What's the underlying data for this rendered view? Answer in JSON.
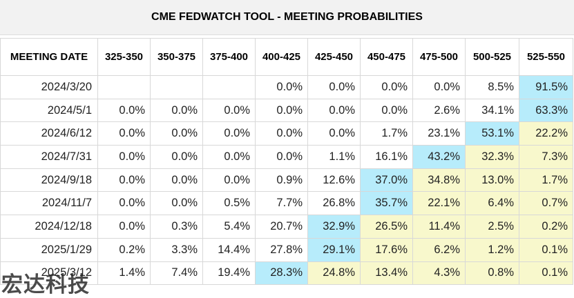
{
  "title": "CME FEDWATCH TOOL - MEETING PROBABILITIES",
  "columns": [
    "MEETING DATE",
    "325-350",
    "350-375",
    "375-400",
    "400-425",
    "425-450",
    "450-475",
    "475-500",
    "500-525",
    "525-550"
  ],
  "rows": [
    {
      "date": "2024/3/20",
      "values": [
        "",
        "",
        "",
        "0.0%",
        "0.0%",
        "0.0%",
        "0.0%",
        "8.5%",
        "91.5%"
      ],
      "highlight": [
        0,
        0,
        0,
        0,
        0,
        0,
        0,
        0,
        2
      ]
    },
    {
      "date": "2024/5/1",
      "values": [
        "0.0%",
        "0.0%",
        "0.0%",
        "0.0%",
        "0.0%",
        "0.0%",
        "2.6%",
        "34.1%",
        "63.3%"
      ],
      "highlight": [
        0,
        0,
        0,
        0,
        0,
        0,
        0,
        0,
        2
      ]
    },
    {
      "date": "2024/6/12",
      "values": [
        "0.0%",
        "0.0%",
        "0.0%",
        "0.0%",
        "0.0%",
        "1.7%",
        "23.1%",
        "53.1%",
        "22.2%"
      ],
      "highlight": [
        0,
        0,
        0,
        0,
        0,
        0,
        0,
        2,
        1
      ]
    },
    {
      "date": "2024/7/31",
      "values": [
        "0.0%",
        "0.0%",
        "0.0%",
        "0.0%",
        "1.1%",
        "16.1%",
        "43.2%",
        "32.3%",
        "7.3%"
      ],
      "highlight": [
        0,
        0,
        0,
        0,
        0,
        0,
        2,
        1,
        1
      ]
    },
    {
      "date": "2024/9/18",
      "values": [
        "0.0%",
        "0.0%",
        "0.0%",
        "0.9%",
        "12.6%",
        "37.0%",
        "34.8%",
        "13.0%",
        "1.7%"
      ],
      "highlight": [
        0,
        0,
        0,
        0,
        0,
        2,
        1,
        1,
        1
      ]
    },
    {
      "date": "2024/11/7",
      "values": [
        "0.0%",
        "0.0%",
        "0.5%",
        "7.7%",
        "26.8%",
        "35.7%",
        "22.1%",
        "6.4%",
        "0.7%"
      ],
      "highlight": [
        0,
        0,
        0,
        0,
        0,
        2,
        1,
        1,
        1
      ]
    },
    {
      "date": "2024/12/18",
      "values": [
        "0.0%",
        "0.3%",
        "5.4%",
        "20.7%",
        "32.9%",
        "26.5%",
        "11.4%",
        "2.5%",
        "0.2%"
      ],
      "highlight": [
        0,
        0,
        0,
        0,
        2,
        1,
        1,
        1,
        1
      ]
    },
    {
      "date": "2025/1/29",
      "values": [
        "0.2%",
        "3.3%",
        "14.4%",
        "27.8%",
        "29.1%",
        "17.6%",
        "6.2%",
        "1.2%",
        "0.1%"
      ],
      "highlight": [
        0,
        0,
        0,
        0,
        2,
        1,
        1,
        1,
        1
      ]
    },
    {
      "date": "2025/3/12",
      "values": [
        "1.4%",
        "7.4%",
        "19.4%",
        "28.3%",
        "24.8%",
        "13.4%",
        "4.3%",
        "0.8%",
        "0.1%"
      ],
      "highlight": [
        0,
        0,
        0,
        2,
        1,
        1,
        1,
        1,
        1
      ]
    }
  ],
  "colors": {
    "highlight_max": "#b7ecfb",
    "highlight_cut": "#f8f8cc",
    "title_bg": "#f2f2f2"
  },
  "watermark": "宏达科技"
}
